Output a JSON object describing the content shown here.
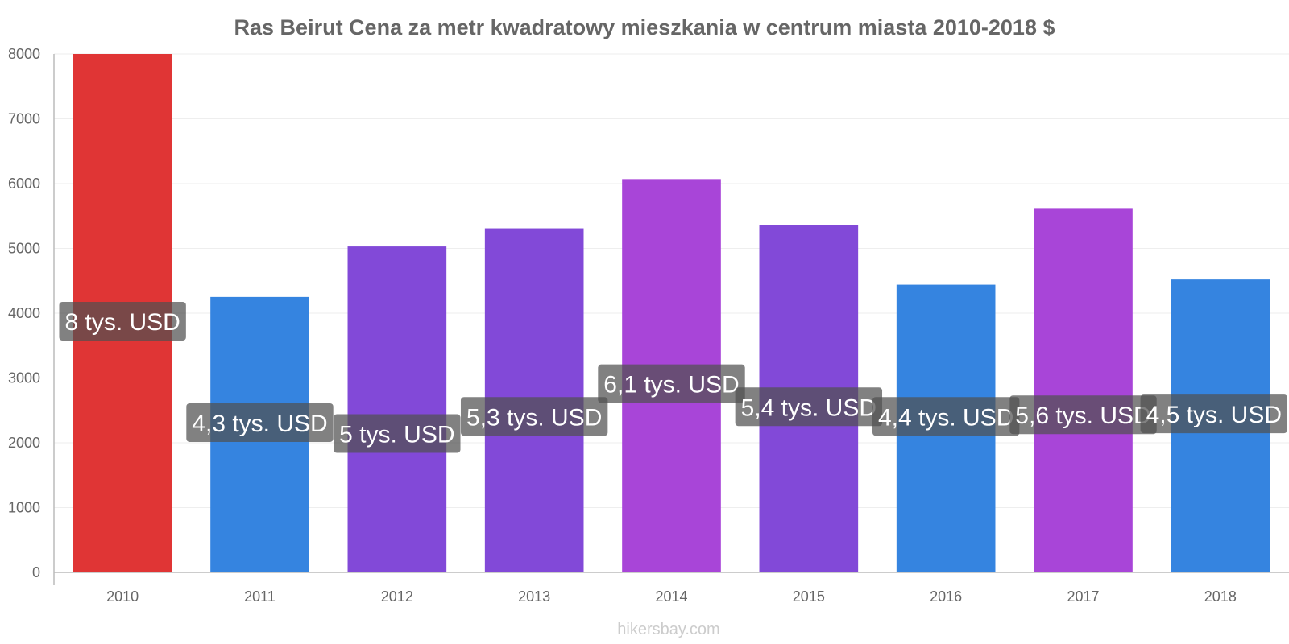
{
  "chart_data": {
    "type": "bar",
    "title": "Ras Beirut Cena za metr kwadratowy mieszkania w centrum miasta 2010-2018 $",
    "xlabel": "",
    "ylabel": "",
    "categories": [
      "2010",
      "2011",
      "2012",
      "2013",
      "2014",
      "2015",
      "2016",
      "2017",
      "2018"
    ],
    "values": [
      8000,
      4250,
      5030,
      5310,
      6070,
      5360,
      4440,
      5610,
      4520
    ],
    "data_labels": [
      "8 tys. USD",
      "4,3 tys. USD",
      "5 tys. USD",
      "5,3 tys. USD",
      "6,1 tys. USD",
      "5,4 tys. USD",
      "4,4 tys. USD",
      "5,6 tys. USD",
      "4,5 tys. USD"
    ],
    "bar_colors": [
      "#e03535",
      "#3584e0",
      "#8249d8",
      "#8249d8",
      "#a845d8",
      "#8249d8",
      "#3584e0",
      "#a845d8",
      "#3584e0"
    ],
    "ylim": [
      0,
      8000
    ],
    "yticks": [
      0,
      1000,
      2000,
      3000,
      4000,
      5000,
      6000,
      7000,
      8000
    ],
    "grid": true,
    "legend": "none"
  },
  "watermark": "hikersbay.com"
}
